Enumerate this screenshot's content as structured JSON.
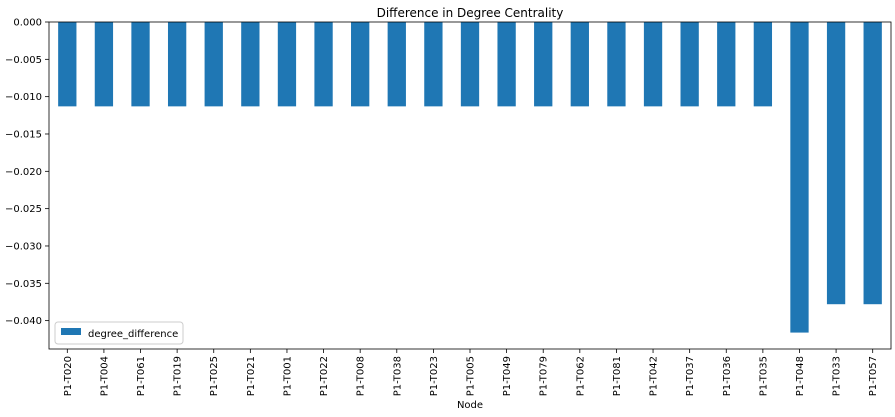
{
  "chart_data": {
    "type": "bar",
    "title": "Difference in Degree Centrality",
    "xlabel": "Node",
    "ylabel": "",
    "categories": [
      "P1-T020",
      "P1-T004",
      "P1-T061",
      "P1-T019",
      "P1-T025",
      "P1-T021",
      "P1-T001",
      "P1-T022",
      "P1-T008",
      "P1-T038",
      "P1-T023",
      "P1-T005",
      "P1-T049",
      "P1-T079",
      "P1-T062",
      "P1-T081",
      "P1-T042",
      "P1-T037",
      "P1-T036",
      "P1-T035",
      "P1-T048",
      "P1-T033",
      "P1-T057"
    ],
    "series": [
      {
        "name": "degree_difference",
        "color": "#1f77b4",
        "values": [
          -0.0113,
          -0.0113,
          -0.0113,
          -0.0113,
          -0.0113,
          -0.0113,
          -0.0113,
          -0.0113,
          -0.0113,
          -0.0113,
          -0.0113,
          -0.0113,
          -0.0113,
          -0.0113,
          -0.0113,
          -0.0113,
          -0.0113,
          -0.0113,
          -0.0113,
          -0.0113,
          -0.0416,
          -0.0378,
          -0.0378
        ]
      }
    ],
    "ylim": [
      -0.0438,
      0.0
    ],
    "yticks": [
      0.0,
      -0.005,
      -0.01,
      -0.015,
      -0.02,
      -0.025,
      -0.03,
      -0.035,
      -0.04
    ],
    "ytick_labels": [
      "0.000",
      "−0.005",
      "−0.010",
      "−0.015",
      "−0.020",
      "−0.025",
      "−0.030",
      "−0.035",
      "−0.040"
    ],
    "grid": false,
    "legend_position": "lower-left"
  }
}
